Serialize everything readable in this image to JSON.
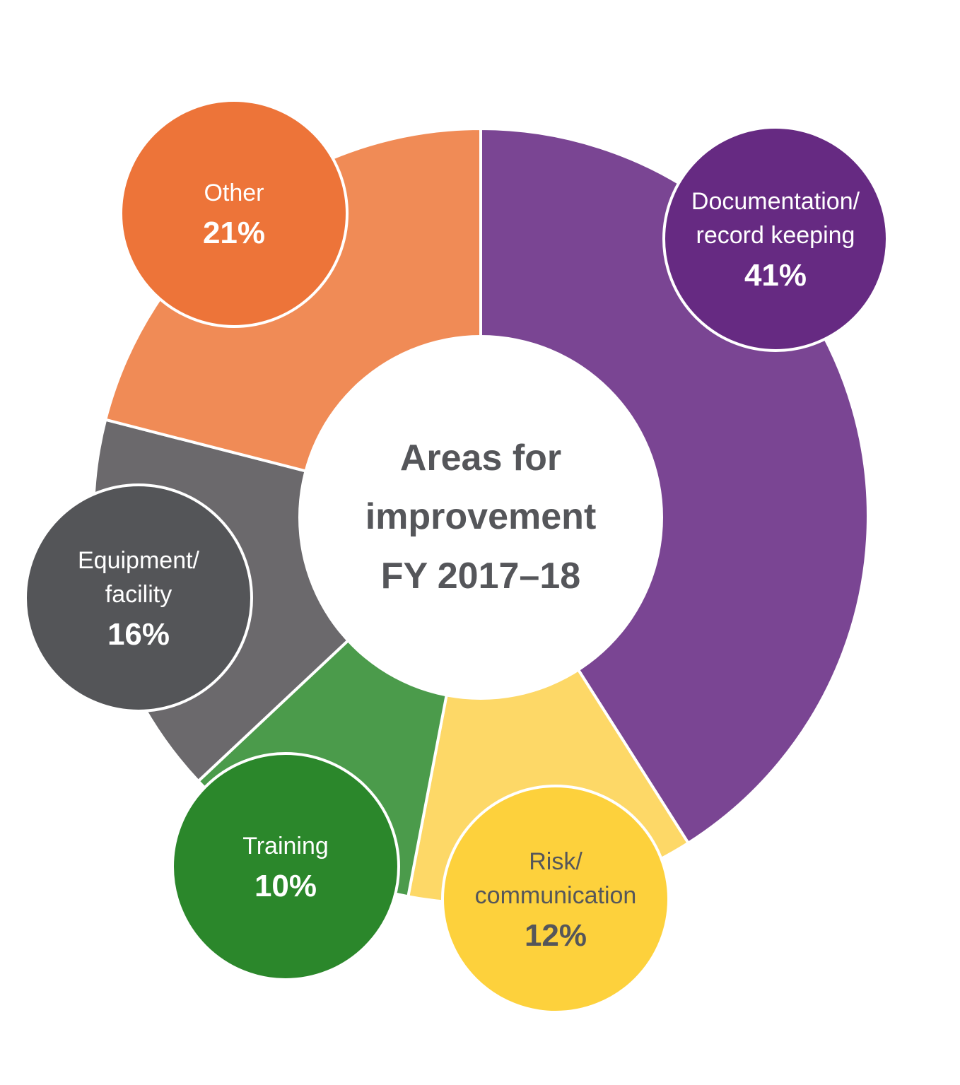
{
  "chart_data": {
    "type": "pie",
    "variant": "donut",
    "title": "Areas for improvement FY 2017–18",
    "unit": "%",
    "categories": [
      "Documentation/record keeping",
      "Risk/communication",
      "Training",
      "Equipment/facility",
      "Other"
    ],
    "values": [
      41,
      12,
      10,
      16,
      21
    ],
    "colors": [
      "#7a4593",
      "#fdd867",
      "#4b9b4b",
      "#6b696c",
      "#f08b56"
    ],
    "label_colors": [
      "#662a82",
      "#fdd13c",
      "#2b872b",
      "#545558",
      "#ed7439"
    ],
    "legend_position": "inline bubbles"
  },
  "center": {
    "line1": "Areas for",
    "line2": "improvement",
    "line3": "FY 2017–18"
  },
  "labels": {
    "documentation": {
      "line1": "Documentation/",
      "line2": "record keeping",
      "pct": "41%"
    },
    "risk": {
      "line1": "Risk/",
      "line2": "communication",
      "pct": "12%"
    },
    "training": {
      "line1": "Training",
      "pct": "10%"
    },
    "equipment": {
      "line1": "Equipment/",
      "line2": "facility",
      "pct": "16%"
    },
    "other": {
      "line1": "Other",
      "pct": "21%"
    }
  }
}
